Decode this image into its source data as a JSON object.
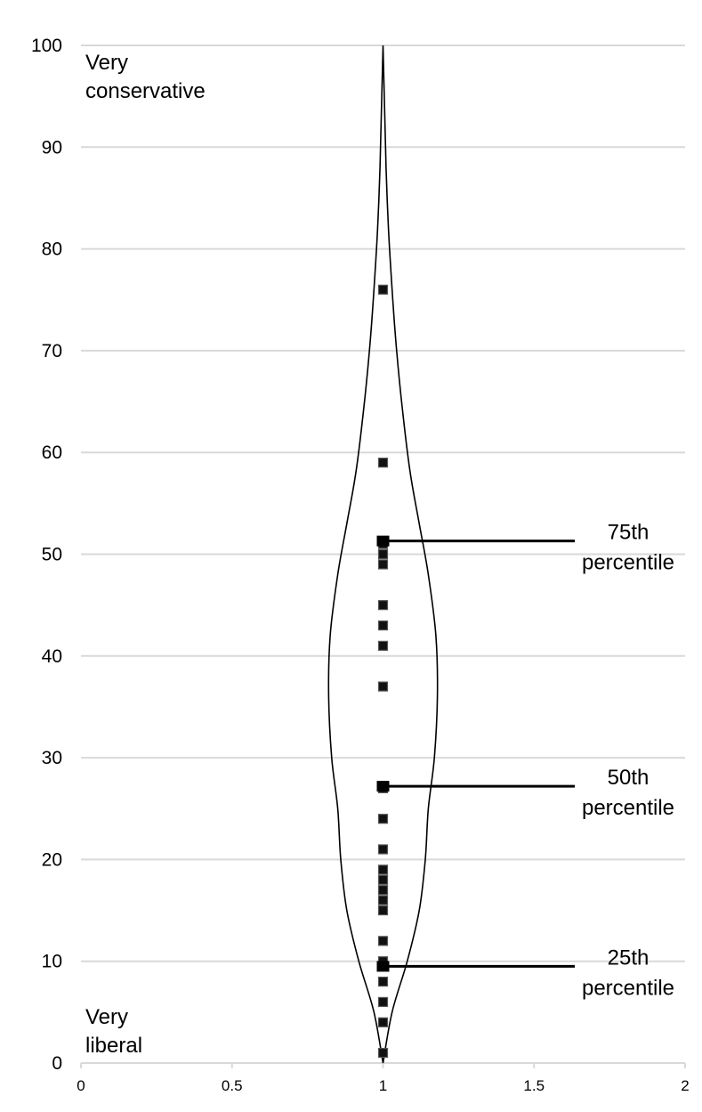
{
  "chart_data": {
    "type": "scatter",
    "subtype": "violin plot with jittered points and percentile markers",
    "xlim": [
      0,
      2
    ],
    "ylim": [
      0,
      100
    ],
    "x_ticks": [
      "0",
      "0.5",
      "1",
      "1.5",
      "2"
    ],
    "y_ticks": [
      "0",
      "10",
      "20",
      "30",
      "40",
      "50",
      "60",
      "70",
      "80",
      "90",
      "100"
    ],
    "grid": "horizontal",
    "points_x": 1,
    "points_y": [
      1,
      4,
      6,
      8,
      9.5,
      10,
      12,
      15,
      16,
      17,
      18,
      19,
      21,
      24,
      27,
      37,
      41,
      43,
      45,
      49,
      50,
      51,
      59,
      76
    ],
    "violin_profile": [
      {
        "y": 0,
        "half_width": 0
      },
      {
        "y": 5,
        "half_width": 0.03
      },
      {
        "y": 10,
        "half_width": 0.08
      },
      {
        "y": 15,
        "half_width": 0.12
      },
      {
        "y": 20,
        "half_width": 0.14
      },
      {
        "y": 25,
        "half_width": 0.15
      },
      {
        "y": 30,
        "half_width": 0.17
      },
      {
        "y": 36,
        "half_width": 0.18
      },
      {
        "y": 42,
        "half_width": 0.175
      },
      {
        "y": 48,
        "half_width": 0.15
      },
      {
        "y": 53,
        "half_width": 0.12
      },
      {
        "y": 58,
        "half_width": 0.09
      },
      {
        "y": 64,
        "half_width": 0.065
      },
      {
        "y": 70,
        "half_width": 0.045
      },
      {
        "y": 76,
        "half_width": 0.03
      },
      {
        "y": 82,
        "half_width": 0.018
      },
      {
        "y": 88,
        "half_width": 0.01
      },
      {
        "y": 94,
        "half_width": 0.005
      },
      {
        "y": 100,
        "half_width": 0
      }
    ],
    "percentiles": [
      {
        "name": "25th",
        "value": 9.5,
        "line1": "25th",
        "line2": "percentile"
      },
      {
        "name": "50th",
        "value": 27.2,
        "line1": "50th",
        "line2": "percentile"
      },
      {
        "name": "75th",
        "value": 51.3,
        "line1": "75th",
        "line2": "percentile"
      }
    ],
    "annotations": {
      "top_line1": "Very",
      "top_line2": "conservative",
      "bottom_line1": "Very",
      "bottom_line2": "liberal"
    }
  }
}
